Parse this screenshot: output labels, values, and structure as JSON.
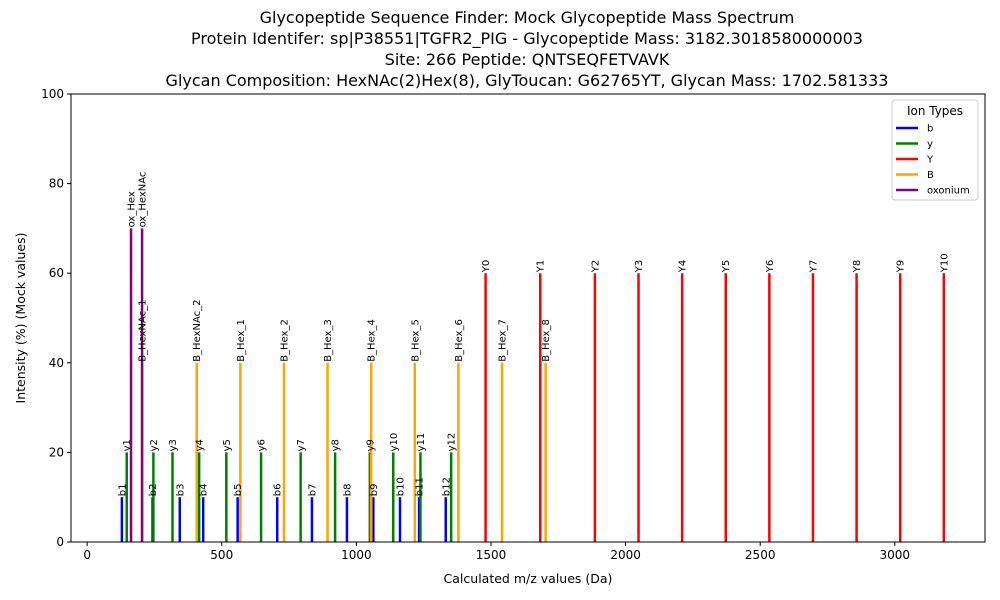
{
  "chart_data": {
    "type": "bar",
    "title_lines": [
      "Glycopeptide Sequence Finder: Mock Glycopeptide Mass Spectrum",
      "Protein Identifer: sp|P38551|TGFR2_PIG - Glycopeptide Mass: 3182.3018580000003",
      "Site: 266 Peptide: QNTSEQFETVAVK",
      "Glycan Composition: HexNAc(2)Hex(8), GlyToucan: G62765YT, Glycan Mass: 1702.581333"
    ],
    "xlabel": "Calculated m/z values (Da)",
    "ylabel": "Intensity (%) (Mock values)",
    "xlim": [
      -60,
      3335
    ],
    "ylim": [
      0,
      100
    ],
    "xticks": [
      0,
      500,
      1000,
      1500,
      2000,
      2500,
      3000
    ],
    "yticks": [
      0,
      20,
      40,
      60,
      80,
      100
    ],
    "legend": {
      "title": "Ion Types",
      "placement": "top-right",
      "entries": [
        {
          "name": "b",
          "color": "#0000ff"
        },
        {
          "name": "y",
          "color": "#008000"
        },
        {
          "name": "Y",
          "color": "#ff0000"
        },
        {
          "name": "B",
          "color": "#ffa500"
        },
        {
          "name": "oxonium",
          "color": "#800080"
        }
      ]
    },
    "series": [
      {
        "name": "b",
        "color": "#0000ff",
        "points": [
          {
            "x": 129,
            "y": 10,
            "label": "b1"
          },
          {
            "x": 243,
            "y": 10,
            "label": "b2"
          },
          {
            "x": 344,
            "y": 10,
            "label": "b3"
          },
          {
            "x": 431,
            "y": 10,
            "label": "b4"
          },
          {
            "x": 559,
            "y": 10,
            "label": "b5"
          },
          {
            "x": 706,
            "y": 10,
            "label": "b6"
          },
          {
            "x": 835,
            "y": 10,
            "label": "b7"
          },
          {
            "x": 965,
            "y": 10,
            "label": "b8"
          },
          {
            "x": 1063,
            "y": 10,
            "label": "b9"
          },
          {
            "x": 1162,
            "y": 10,
            "label": "b10"
          },
          {
            "x": 1233,
            "y": 10,
            "label": "b11"
          },
          {
            "x": 1332,
            "y": 10,
            "label": "b12"
          }
        ]
      },
      {
        "name": "y",
        "color": "#008000",
        "points": [
          {
            "x": 147,
            "y": 20,
            "label": "y1"
          },
          {
            "x": 246,
            "y": 20,
            "label": "y2"
          },
          {
            "x": 317,
            "y": 20,
            "label": "y3"
          },
          {
            "x": 416,
            "y": 20,
            "label": "y4"
          },
          {
            "x": 517,
            "y": 20,
            "label": "y5"
          },
          {
            "x": 646,
            "y": 20,
            "label": "y6"
          },
          {
            "x": 793,
            "y": 20,
            "label": "y7"
          },
          {
            "x": 921,
            "y": 20,
            "label": "y8"
          },
          {
            "x": 1050,
            "y": 20,
            "label": "y9"
          },
          {
            "x": 1137,
            "y": 20,
            "label": "y10"
          },
          {
            "x": 1238,
            "y": 20,
            "label": "y11"
          },
          {
            "x": 1352,
            "y": 20,
            "label": "y12"
          }
        ]
      },
      {
        "name": "Y",
        "color": "#ff0000",
        "points": [
          {
            "x": 1480,
            "y": 60,
            "label": "Y0"
          },
          {
            "x": 1683,
            "y": 60,
            "label": "Y1"
          },
          {
            "x": 1886,
            "y": 60,
            "label": "Y2"
          },
          {
            "x": 2048,
            "y": 60,
            "label": "Y3"
          },
          {
            "x": 2210,
            "y": 60,
            "label": "Y4"
          },
          {
            "x": 2372,
            "y": 60,
            "label": "Y5"
          },
          {
            "x": 2534,
            "y": 60,
            "label": "Y6"
          },
          {
            "x": 2696,
            "y": 60,
            "label": "Y7"
          },
          {
            "x": 2858,
            "y": 60,
            "label": "Y8"
          },
          {
            "x": 3020,
            "y": 60,
            "label": "Y9"
          },
          {
            "x": 3182,
            "y": 60,
            "label": "Y10"
          }
        ]
      },
      {
        "name": "B",
        "color": "#ffa500",
        "points": [
          {
            "x": 204,
            "y": 40,
            "label": "B_HexNAc_1"
          },
          {
            "x": 407,
            "y": 40,
            "label": "B_HexNAc_2"
          },
          {
            "x": 569,
            "y": 40,
            "label": "B_Hex_1"
          },
          {
            "x": 731,
            "y": 40,
            "label": "B_Hex_2"
          },
          {
            "x": 893,
            "y": 40,
            "label": "B_Hex_3"
          },
          {
            "x": 1055,
            "y": 40,
            "label": "B_Hex_4"
          },
          {
            "x": 1217,
            "y": 40,
            "label": "B_Hex_5"
          },
          {
            "x": 1379,
            "y": 40,
            "label": "B_Hex_6"
          },
          {
            "x": 1541,
            "y": 40,
            "label": "B_Hex_7"
          },
          {
            "x": 1703,
            "y": 40,
            "label": "B_Hex_8"
          }
        ]
      },
      {
        "name": "oxonium",
        "color": "#800080",
        "points": [
          {
            "x": 163,
            "y": 70,
            "label": "ox_Hex"
          },
          {
            "x": 204,
            "y": 70,
            "label": "ox_HexNAc"
          }
        ]
      }
    ]
  }
}
